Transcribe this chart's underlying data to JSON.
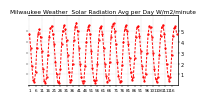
{
  "title": "Milwaukee Weather  Solar Radiation Avg per Day W/m2/minute",
  "values": [
    4.8,
    3.5,
    1.8,
    0.5,
    0.3,
    1.2,
    3.5,
    4.8,
    5.2,
    4.5,
    3.2,
    1.5,
    0.4,
    0.2,
    0.8,
    2.8,
    4.5,
    5.3,
    5.5,
    4.8,
    3.8,
    2.2,
    1.0,
    0.3,
    0.2,
    1.5,
    3.8,
    5.0,
    5.6,
    5.2,
    4.2,
    2.8,
    1.2,
    0.3,
    0.5,
    2.0,
    4.2,
    5.4,
    5.8,
    5.0,
    3.5,
    2.0,
    0.8,
    0.2,
    0.4,
    1.8,
    4.0,
    5.2,
    5.6,
    4.8,
    3.2,
    1.6,
    0.5,
    0.2,
    0.5,
    2.0,
    4.2,
    5.3,
    5.5,
    4.8,
    3.5,
    2.0,
    0.9,
    0.3,
    0.5,
    2.2,
    4.5,
    5.5,
    5.8,
    5.0,
    3.8,
    2.2,
    0.9,
    0.3,
    0.4,
    1.9,
    4.0,
    5.2,
    5.6,
    5.0,
    3.8,
    2.5,
    1.2,
    0.5,
    0.8,
    2.5,
    4.5,
    5.4,
    5.5,
    4.6,
    3.2,
    1.8,
    0.8,
    0.4,
    1.0,
    3.0,
    4.8,
    5.5,
    5.4,
    4.5,
    3.0,
    1.5,
    0.6,
    0.3,
    0.8,
    2.8,
    4.6,
    5.4,
    5.6,
    4.8,
    3.5,
    2.0,
    0.9,
    0.4,
    0.8,
    2.8,
    4.6,
    5.3,
    5.5,
    4.8
  ],
  "line_color": "#ff0000",
  "background_color": "#ffffff",
  "grid_color": "#b0b0b0",
  "ylim": [
    0,
    6.5
  ],
  "yticks": [
    1,
    2,
    3,
    4,
    5
  ],
  "ylabel_fontsize": 3.5,
  "title_fontsize": 4.2,
  "xlabel_fontsize": 3.0,
  "vline_interval": 10,
  "xtick_interval": 5
}
